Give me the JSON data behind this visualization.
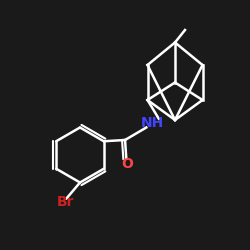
{
  "bg_color": "#1a1a1a",
  "bond_color": "#ffffff",
  "N_color": "#4444ff",
  "O_color": "#ff4444",
  "Br_color": "#cc2222",
  "bond_width": 1.8,
  "font_size": 10,
  "NH_label": "NH",
  "O_label": "O",
  "Br_label": "Br"
}
